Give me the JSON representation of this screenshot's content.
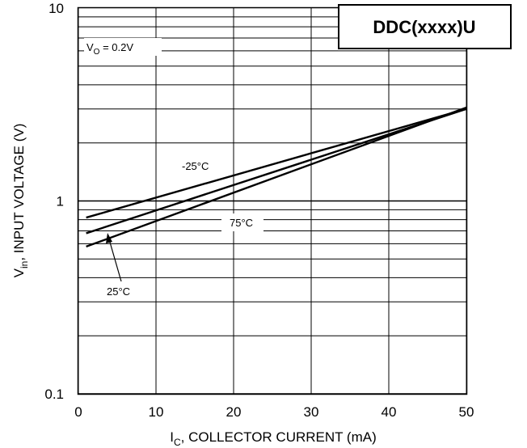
{
  "chart_data": {
    "type": "line",
    "title": "DDC(xxxx)U",
    "xlabel": {
      "main": "I",
      "sub": "C",
      "rest": ", COLLECTOR CURRENT (mA)"
    },
    "ylabel": {
      "main": "V",
      "sub": "in",
      "rest": ", INPUT VOLTAGE (V)"
    },
    "xlim": [
      0,
      50
    ],
    "ylim": [
      0.1,
      10
    ],
    "y_scale": "log",
    "grid": true,
    "x_ticks": [
      "0",
      "10",
      "20",
      "30",
      "40",
      "50"
    ],
    "y_ticks": [
      "0.1",
      "1",
      "10"
    ],
    "annotation": {
      "main": "V",
      "sub": "O",
      "rest": " = 0.2V"
    },
    "series": [
      {
        "name": "-25°C",
        "x": [
          1,
          50
        ],
        "y": [
          0.82,
          3.0
        ]
      },
      {
        "name": "75°C",
        "x": [
          1,
          50
        ],
        "y": [
          0.68,
          3.0
        ]
      },
      {
        "name": "25°C",
        "x": [
          1,
          50
        ],
        "y": [
          0.58,
          3.05
        ]
      }
    ]
  }
}
